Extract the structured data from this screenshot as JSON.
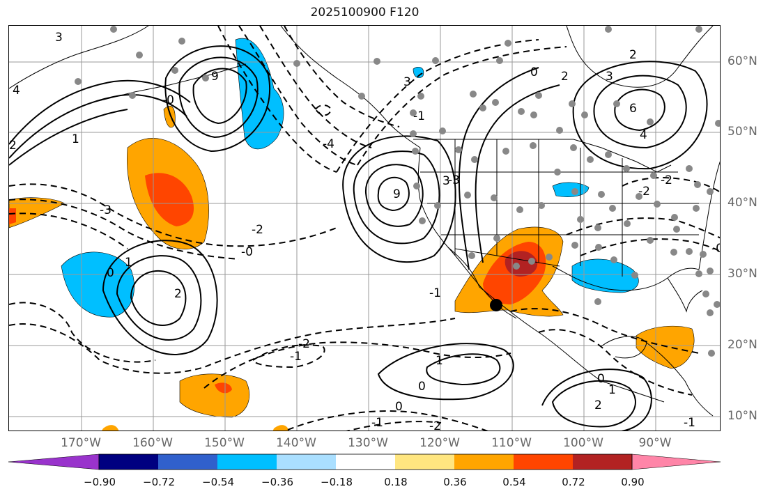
{
  "title": "2025100900 F120",
  "lat_labels": [
    "60°N",
    "50°N",
    "40°N",
    "30°N",
    "20°N",
    "10°N"
  ],
  "lon_labels": [
    "170°W",
    "160°W",
    "150°W",
    "140°W",
    "130°W",
    "120°W",
    "110°W",
    "100°W",
    "90°W"
  ],
  "colorbar": {
    "ticks": [
      "−0.90",
      "−0.72",
      "−0.54",
      "−0.36",
      "−0.18",
      "0.18",
      "0.36",
      "0.54",
      "0.72",
      "0.90"
    ],
    "colors": [
      "#9933cc",
      "#000080",
      "#3060cc",
      "#00bfff",
      "#aadfff",
      "#ffffff",
      "#ffe680",
      "#ffa500",
      "#ff4500",
      "#b22222",
      "#ff85a8"
    ]
  },
  "contour_labels": [
    "3",
    "4",
    "2",
    "1",
    "9",
    "-3",
    "-2",
    "-0",
    "0",
    "1",
    "2",
    "-4",
    "3",
    "-1",
    "-2",
    "-1",
    "0",
    "1",
    "0",
    "-1",
    "-2",
    "0",
    "1",
    "2",
    "2",
    "3",
    "-2",
    "-0",
    "-1",
    "4",
    "6",
    "3",
    "9",
    "-3",
    "-2",
    "-0",
    "-1",
    "0",
    "2"
  ]
}
